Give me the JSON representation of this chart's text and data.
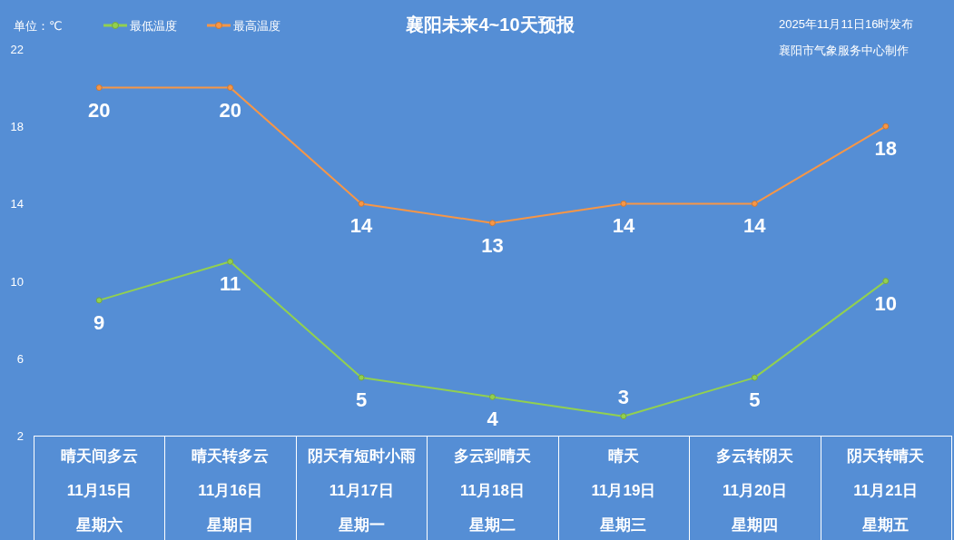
{
  "chart_data": {
    "type": "line",
    "title": "襄阳未来4~10天预报",
    "subtitle": "2025年11月11日16时发布",
    "ylabel": "单位：℃",
    "annotations": [
      "襄阳市气象服务中心制作",
      "晴天间多云",
      "晴天转多云",
      "阴天有短时小雨",
      "多云到晴天",
      "晴天",
      "多云转阴天",
      "阴天转晴天",
      "星期六",
      "星期日",
      "星期一",
      "星期二",
      "星期三",
      "星期四",
      "星期五"
    ],
    "categories": [
      "11月15日",
      "11月16日",
      "11月17日",
      "11月18日",
      "11月19日",
      "11月20日",
      "11月21日"
    ],
    "series": [
      {
        "name": "最低温度",
        "color": "#92d050",
        "values": [
          9,
          11,
          5,
          4,
          3,
          5,
          10
        ]
      },
      {
        "name": "最高温度",
        "color": "#f79646",
        "values": [
          20,
          20,
          14,
          13,
          14,
          14,
          18
        ]
      }
    ],
    "ylim": [
      2,
      22
    ],
    "yticks": [
      2,
      6,
      10,
      14,
      18,
      22
    ],
    "grid": false,
    "legend": "top left",
    "marker": "circle",
    "line_style": "solid",
    "data_labels": true
  }
}
